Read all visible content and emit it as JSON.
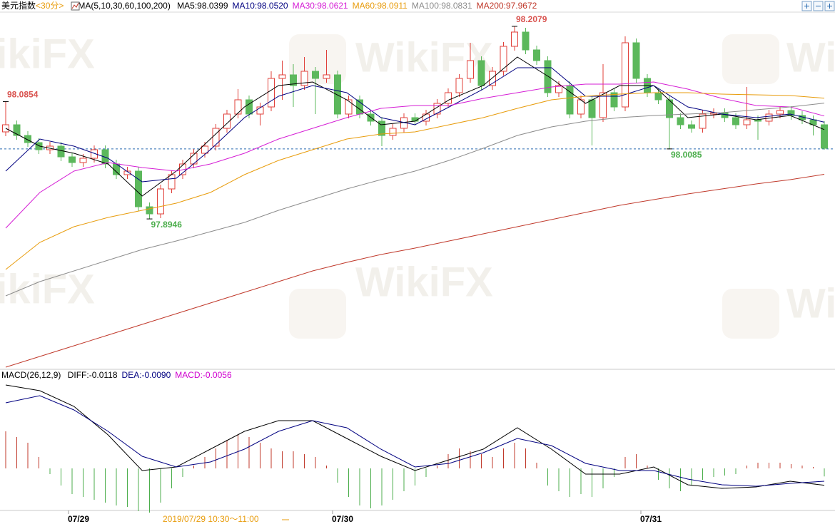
{
  "chart_data": {
    "type": "candlestick",
    "title": "美元指数",
    "period": "<30分>",
    "indicator": "MA(5,10,30,60,100,200)",
    "ylim": [
      97.6511,
      98.2299
    ],
    "up_color": "#e0403a",
    "down_color": "#5cb85c",
    "candles": [
      [
        98.0362,
        98.0854,
        98.0292,
        98.0478
      ],
      [
        98.0478,
        98.0548,
        98.0234,
        98.0304
      ],
      [
        98.0304,
        98.0374,
        98.0118,
        98.0188
      ],
      [
        98.0188,
        98.0258,
        98.0002,
        98.0072
      ],
      [
        98.0072,
        98.02,
        98.0002,
        98.013
      ],
      [
        98.013,
        98.02,
        97.9886,
        97.9956
      ],
      [
        97.9956,
        98.0026,
        97.9794,
        97.9863
      ],
      [
        97.9863,
        98.0002,
        97.9794,
        97.9933
      ],
      [
        97.9933,
        98.0142,
        97.9863,
        98.0072
      ],
      [
        98.0072,
        98.0142,
        97.9771,
        97.984
      ],
      [
        97.984,
        97.991,
        97.9596,
        97.9666
      ],
      [
        97.9666,
        97.9794,
        97.9596,
        97.9724
      ],
      [
        97.9724,
        97.9794,
        97.9074,
        97.9144
      ],
      [
        97.9144,
        97.9214,
        97.8946,
        97.9028
      ],
      [
        97.9028,
        97.9504,
        97.8958,
        97.9434
      ],
      [
        97.9434,
        97.9736,
        97.9364,
        97.9666
      ],
      [
        97.9666,
        97.991,
        97.9596,
        97.984
      ],
      [
        97.984,
        98.0084,
        97.9771,
        98.0014
      ],
      [
        98.0014,
        98.02,
        97.9944,
        98.013
      ],
      [
        98.013,
        98.049,
        98.006,
        98.042
      ],
      [
        98.042,
        98.0722,
        98.035,
        98.0652
      ],
      [
        98.0652,
        98.1058,
        98.0582,
        98.0884
      ],
      [
        98.0884,
        98.0954,
        98.0582,
        98.0652
      ],
      [
        98.0652,
        98.0838,
        98.0466,
        98.0768
      ],
      [
        98.0768,
        98.1348,
        98.0698,
        98.1232
      ],
      [
        98.1232,
        98.1522,
        98.0884,
        98.129
      ],
      [
        98.129,
        98.1464,
        98.0768,
        98.1116
      ],
      [
        98.1116,
        98.158,
        98.1046,
        98.1348
      ],
      [
        98.1348,
        98.1418,
        98.0652,
        98.1232
      ],
      [
        98.1232,
        98.1696,
        98.1162,
        98.129
      ],
      [
        98.129,
        98.136,
        98.0582,
        98.0652
      ],
      [
        98.0652,
        98.0954,
        98.0582,
        98.0884
      ],
      [
        98.0884,
        98.0954,
        98.0582,
        98.0652
      ],
      [
        98.0652,
        98.0722,
        98.0466,
        98.0536
      ],
      [
        98.0536,
        98.0606,
        98.013,
        98.0304
      ],
      [
        98.0304,
        98.049,
        98.0234,
        98.042
      ],
      [
        98.042,
        98.0664,
        98.035,
        98.0594
      ],
      [
        98.0594,
        98.0664,
        98.0466,
        98.0536
      ],
      [
        98.0536,
        98.0722,
        98.0466,
        98.0652
      ],
      [
        98.0652,
        98.0896,
        98.0582,
        98.0826
      ],
      [
        98.0826,
        98.107,
        98.0756,
        98.1
      ],
      [
        98.1,
        98.1302,
        98.093,
        98.1232
      ],
      [
        98.1232,
        98.1812,
        98.1162,
        98.1522
      ],
      [
        98.1522,
        98.1592,
        98.1046,
        98.1116
      ],
      [
        98.1116,
        98.1418,
        98.1046,
        98.1348
      ],
      [
        98.1348,
        98.1824,
        98.1278,
        98.1754
      ],
      [
        98.1754,
        98.2079,
        98.1684,
        98.1986
      ],
      [
        98.1986,
        98.2056,
        98.1626,
        98.1696
      ],
      [
        98.1696,
        98.1766,
        98.1452,
        98.1522
      ],
      [
        98.1522,
        98.1592,
        98.093,
        98.1
      ],
      [
        98.1,
        98.1186,
        98.093,
        98.1116
      ],
      [
        98.1116,
        98.1186,
        98.0582,
        98.0652
      ],
      [
        98.0652,
        98.0954,
        98.0582,
        98.0884
      ],
      [
        98.0884,
        98.0954,
        98.0142,
        98.0594
      ],
      [
        98.0594,
        98.1464,
        98.0524,
        98.1
      ],
      [
        98.1,
        98.107,
        98.0698,
        98.0768
      ],
      [
        98.0768,
        98.1916,
        98.0698,
        98.1812
      ],
      [
        98.1812,
        98.1882,
        98.1162,
        98.1232
      ],
      [
        98.1232,
        98.1302,
        98.093,
        98.1
      ],
      [
        98.1,
        98.107,
        98.0814,
        98.0884
      ],
      [
        98.0884,
        98.0954,
        98.0085,
        98.0594
      ],
      [
        98.0594,
        98.0664,
        98.0408,
        98.0478
      ],
      [
        98.0478,
        98.0548,
        98.035,
        98.042
      ],
      [
        98.042,
        98.0722,
        98.035,
        98.0652
      ],
      [
        98.0652,
        98.0745,
        98.0582,
        98.0675
      ],
      [
        98.0675,
        98.0745,
        98.0524,
        98.0594
      ],
      [
        98.0594,
        98.0664,
        98.0408,
        98.0478
      ],
      [
        98.0478,
        98.1093,
        98.0408,
        98.0559
      ],
      [
        98.0559,
        98.0629,
        98.0234,
        98.0536
      ],
      [
        98.0536,
        98.0722,
        98.0466,
        98.0652
      ],
      [
        98.0652,
        98.078,
        98.0582,
        98.071
      ],
      [
        98.071,
        98.078,
        98.0559,
        98.0629
      ],
      [
        98.0629,
        98.0698,
        98.049,
        98.0559
      ],
      [
        98.0559,
        98.0629,
        98.0304,
        98.0478
      ],
      [
        98.0478,
        98.0536,
        98.0072,
        98.0095
      ]
    ],
    "series": [
      {
        "name": "MA5:98.0399",
        "color": "#000000",
        "values": [
          98.042,
          98.013,
          98.0014,
          97.984,
          97.9318,
          97.9724,
          98.0246,
          98.0768,
          98.1116,
          98.1174,
          98.0884,
          98.0478,
          98.0536,
          98.0884,
          98.1116,
          98.158,
          98.1232,
          98.0826,
          98.1116,
          98.1116,
          98.0594,
          98.0652,
          98.0559,
          98.0629,
          98.0399
        ]
      },
      {
        "name": "MA10:98.0520",
        "color": "#000080",
        "values": [
          97.9724,
          98.0246,
          98.013,
          97.9933,
          97.955,
          97.9608,
          98.0072,
          98.0594,
          98.0942,
          98.1116,
          98.1,
          98.0594,
          98.0478,
          98.0768,
          98.1058,
          98.1406,
          98.1406,
          98.0942,
          98.0942,
          98.1116,
          98.0768,
          98.0652,
          98.0594,
          98.0652,
          98.052
        ]
      },
      {
        "name": "MA30:98.0621",
        "color": "#d51ed5",
        "values": [
          97.8796,
          97.9376,
          97.9724,
          97.9863,
          97.9782,
          97.9724,
          97.984,
          98.0014,
          98.0246,
          98.042,
          98.0594,
          98.0745,
          98.0791,
          98.0791,
          98.0907,
          98.1,
          98.1093,
          98.1139,
          98.1139,
          98.1174,
          98.1058,
          98.0907,
          98.0791,
          98.0768,
          98.0621
        ]
      },
      {
        "name": "MA60:98.0911",
        "color": "#e89c0c",
        "values": [
          97.8123,
          97.8564,
          97.8819,
          97.897,
          97.9086,
          97.9202,
          97.9376,
          97.9666,
          97.9898,
          98.0072,
          98.0246,
          98.0327,
          98.0362,
          98.0478,
          98.0594,
          98.0745,
          98.0884,
          98.0942,
          98.0977,
          98.1,
          98.1,
          98.0977,
          98.0965,
          98.0954,
          98.0911
        ]
      },
      {
        "name": "MA100:98.0831",
        "color": "#8c8c8c",
        "values": [
          97.7694,
          97.7926,
          97.81,
          97.8274,
          97.8448,
          97.8587,
          97.8738,
          97.8889,
          97.9086,
          97.926,
          97.9434,
          97.9585,
          97.9724,
          97.9898,
          98.0095,
          98.0304,
          98.0443,
          98.0536,
          98.0594,
          98.0629,
          98.0652,
          98.0675,
          98.0722,
          98.0768,
          98.0831
        ]
      },
      {
        "name": "MA200:97.9672",
        "color": "#c0392b",
        "values": [
          97.6534,
          97.6708,
          97.6882,
          97.7056,
          97.723,
          97.7404,
          97.7578,
          97.7752,
          97.7926,
          97.81,
          97.8239,
          97.8367,
          97.8471,
          97.8587,
          97.8703,
          97.8819,
          97.8935,
          97.9051,
          97.9167,
          97.926,
          97.9353,
          97.9434,
          97.9515,
          97.9585,
          97.9672
        ]
      }
    ],
    "annotations": [
      {
        "value": 98.0854,
        "color": "#d9534f"
      },
      {
        "value": 97.8946,
        "color": "#4cae4c"
      },
      {
        "value": 98.2079,
        "color": "#d9534f"
      },
      {
        "value": 98.0085,
        "color": "#4cae4c"
      }
    ],
    "macd": {
      "title": "MACD(26,12,9)",
      "ylim": [
        -0.0305,
        0.061
      ],
      "series": [
        {
          "name": "DIFF:-0.0118",
          "color": "#000000",
          "values": [
            0.0585,
            0.0545,
            0.0435,
            0.0235,
            -0.0015,
            0.001,
            0.0135,
            0.026,
            0.0335,
            0.0335,
            0.021,
            0.0085,
            -0.0015,
            0.006,
            0.0135,
            0.0285,
            0.0135,
            -0.004,
            -0.004,
            0.001,
            -0.0115,
            -0.014,
            -0.013,
            -0.009,
            -0.0118
          ]
        },
        {
          "name": "DEA:-0.0090",
          "color": "#000080",
          "values": [
            0.046,
            0.051,
            0.041,
            0.026,
            0.0085,
            0.001,
            0.0045,
            0.0135,
            0.026,
            0.0335,
            0.0285,
            0.0135,
            0.001,
            0.0035,
            0.011,
            0.021,
            0.016,
            0.0035,
            -0.0015,
            -0.0015,
            -0.0075,
            -0.0115,
            -0.0125,
            -0.0105,
            -0.009
          ]
        }
      ],
      "histogram": {
        "name": "MACD:-0.0056",
        "color": "#d000d0",
        "up_color": "#c0392b",
        "down_color": "#4cae4c",
        "values": [
          0.026,
          0.022,
          0.018,
          0.008,
          -0.004,
          -0.012,
          -0.018,
          -0.02,
          -0.022,
          -0.024,
          -0.026,
          -0.027,
          -0.03,
          -0.031,
          -0.024,
          -0.014,
          -0.006,
          0.002,
          0.008,
          0.014,
          0.02,
          0.024,
          0.022,
          0.018,
          0.014,
          0.012,
          0.012,
          0.01,
          0.008,
          0.002,
          -0.01,
          -0.02,
          -0.026,
          -0.028,
          -0.026,
          -0.022,
          -0.016,
          -0.012,
          -0.006,
          0.002,
          0.01,
          0.014,
          0.012,
          0.01,
          0.008,
          0.014,
          0.018,
          0.014,
          0.004,
          -0.012,
          -0.016,
          -0.02,
          -0.018,
          -0.02,
          -0.014,
          -0.006,
          0.008,
          0.01,
          0.002,
          -0.008,
          -0.014,
          -0.016,
          -0.012,
          -0.008,
          -0.006,
          -0.005,
          -0.004,
          0.002,
          0.004,
          0.004,
          0.004,
          0.003,
          0.002,
          0.001,
          -0.0056
        ]
      }
    },
    "x_labels": [
      "07/29",
      "07/30",
      "07/31"
    ],
    "cursor_label": "2019/07/29 10:30～11:00",
    "watermark": "WikiFX"
  }
}
